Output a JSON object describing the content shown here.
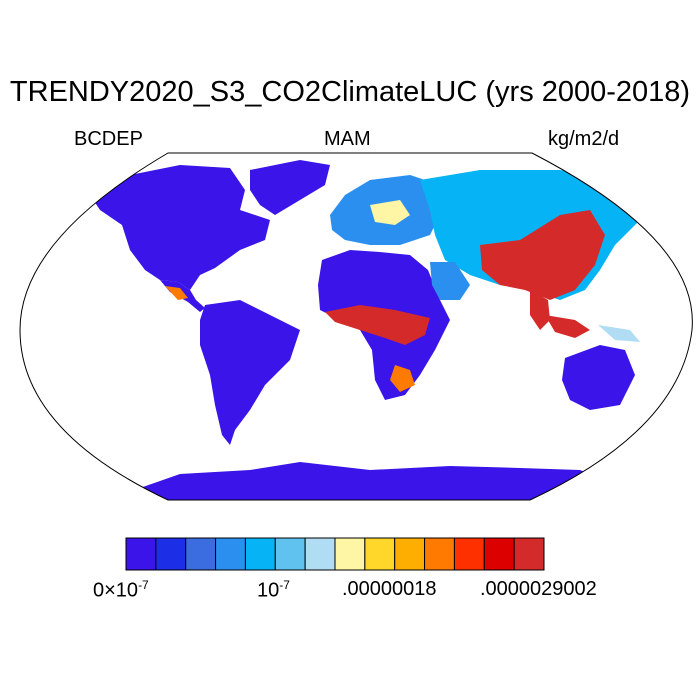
{
  "title": "TRENDY2020_S3_CO2ClimateLUC (yrs 2000-2018)",
  "left_label": "BCDEP",
  "center_label": "MAM",
  "units": "kg/m2/d",
  "colorbar": {
    "colors": [
      "#3a14e8",
      "#1c2ee6",
      "#3b6ce0",
      "#2b8ff0",
      "#06b4f5",
      "#60c2ee",
      "#b0dcf4",
      "#fef6a4",
      "#fed72a",
      "#feae00",
      "#fe7a00",
      "#fe3000",
      "#dc0000",
      "#d52a2a"
    ],
    "label_1_base": "0×10",
    "label_1_exp": "-7",
    "label_2_base": "10",
    "label_2_exp": "-7",
    "label_3": ".00000018",
    "label_4": ".0000029002"
  },
  "map": {
    "ocean_color": "#ffffff",
    "low_color": "#3a14e8",
    "high_color": "#dc1f12"
  }
}
